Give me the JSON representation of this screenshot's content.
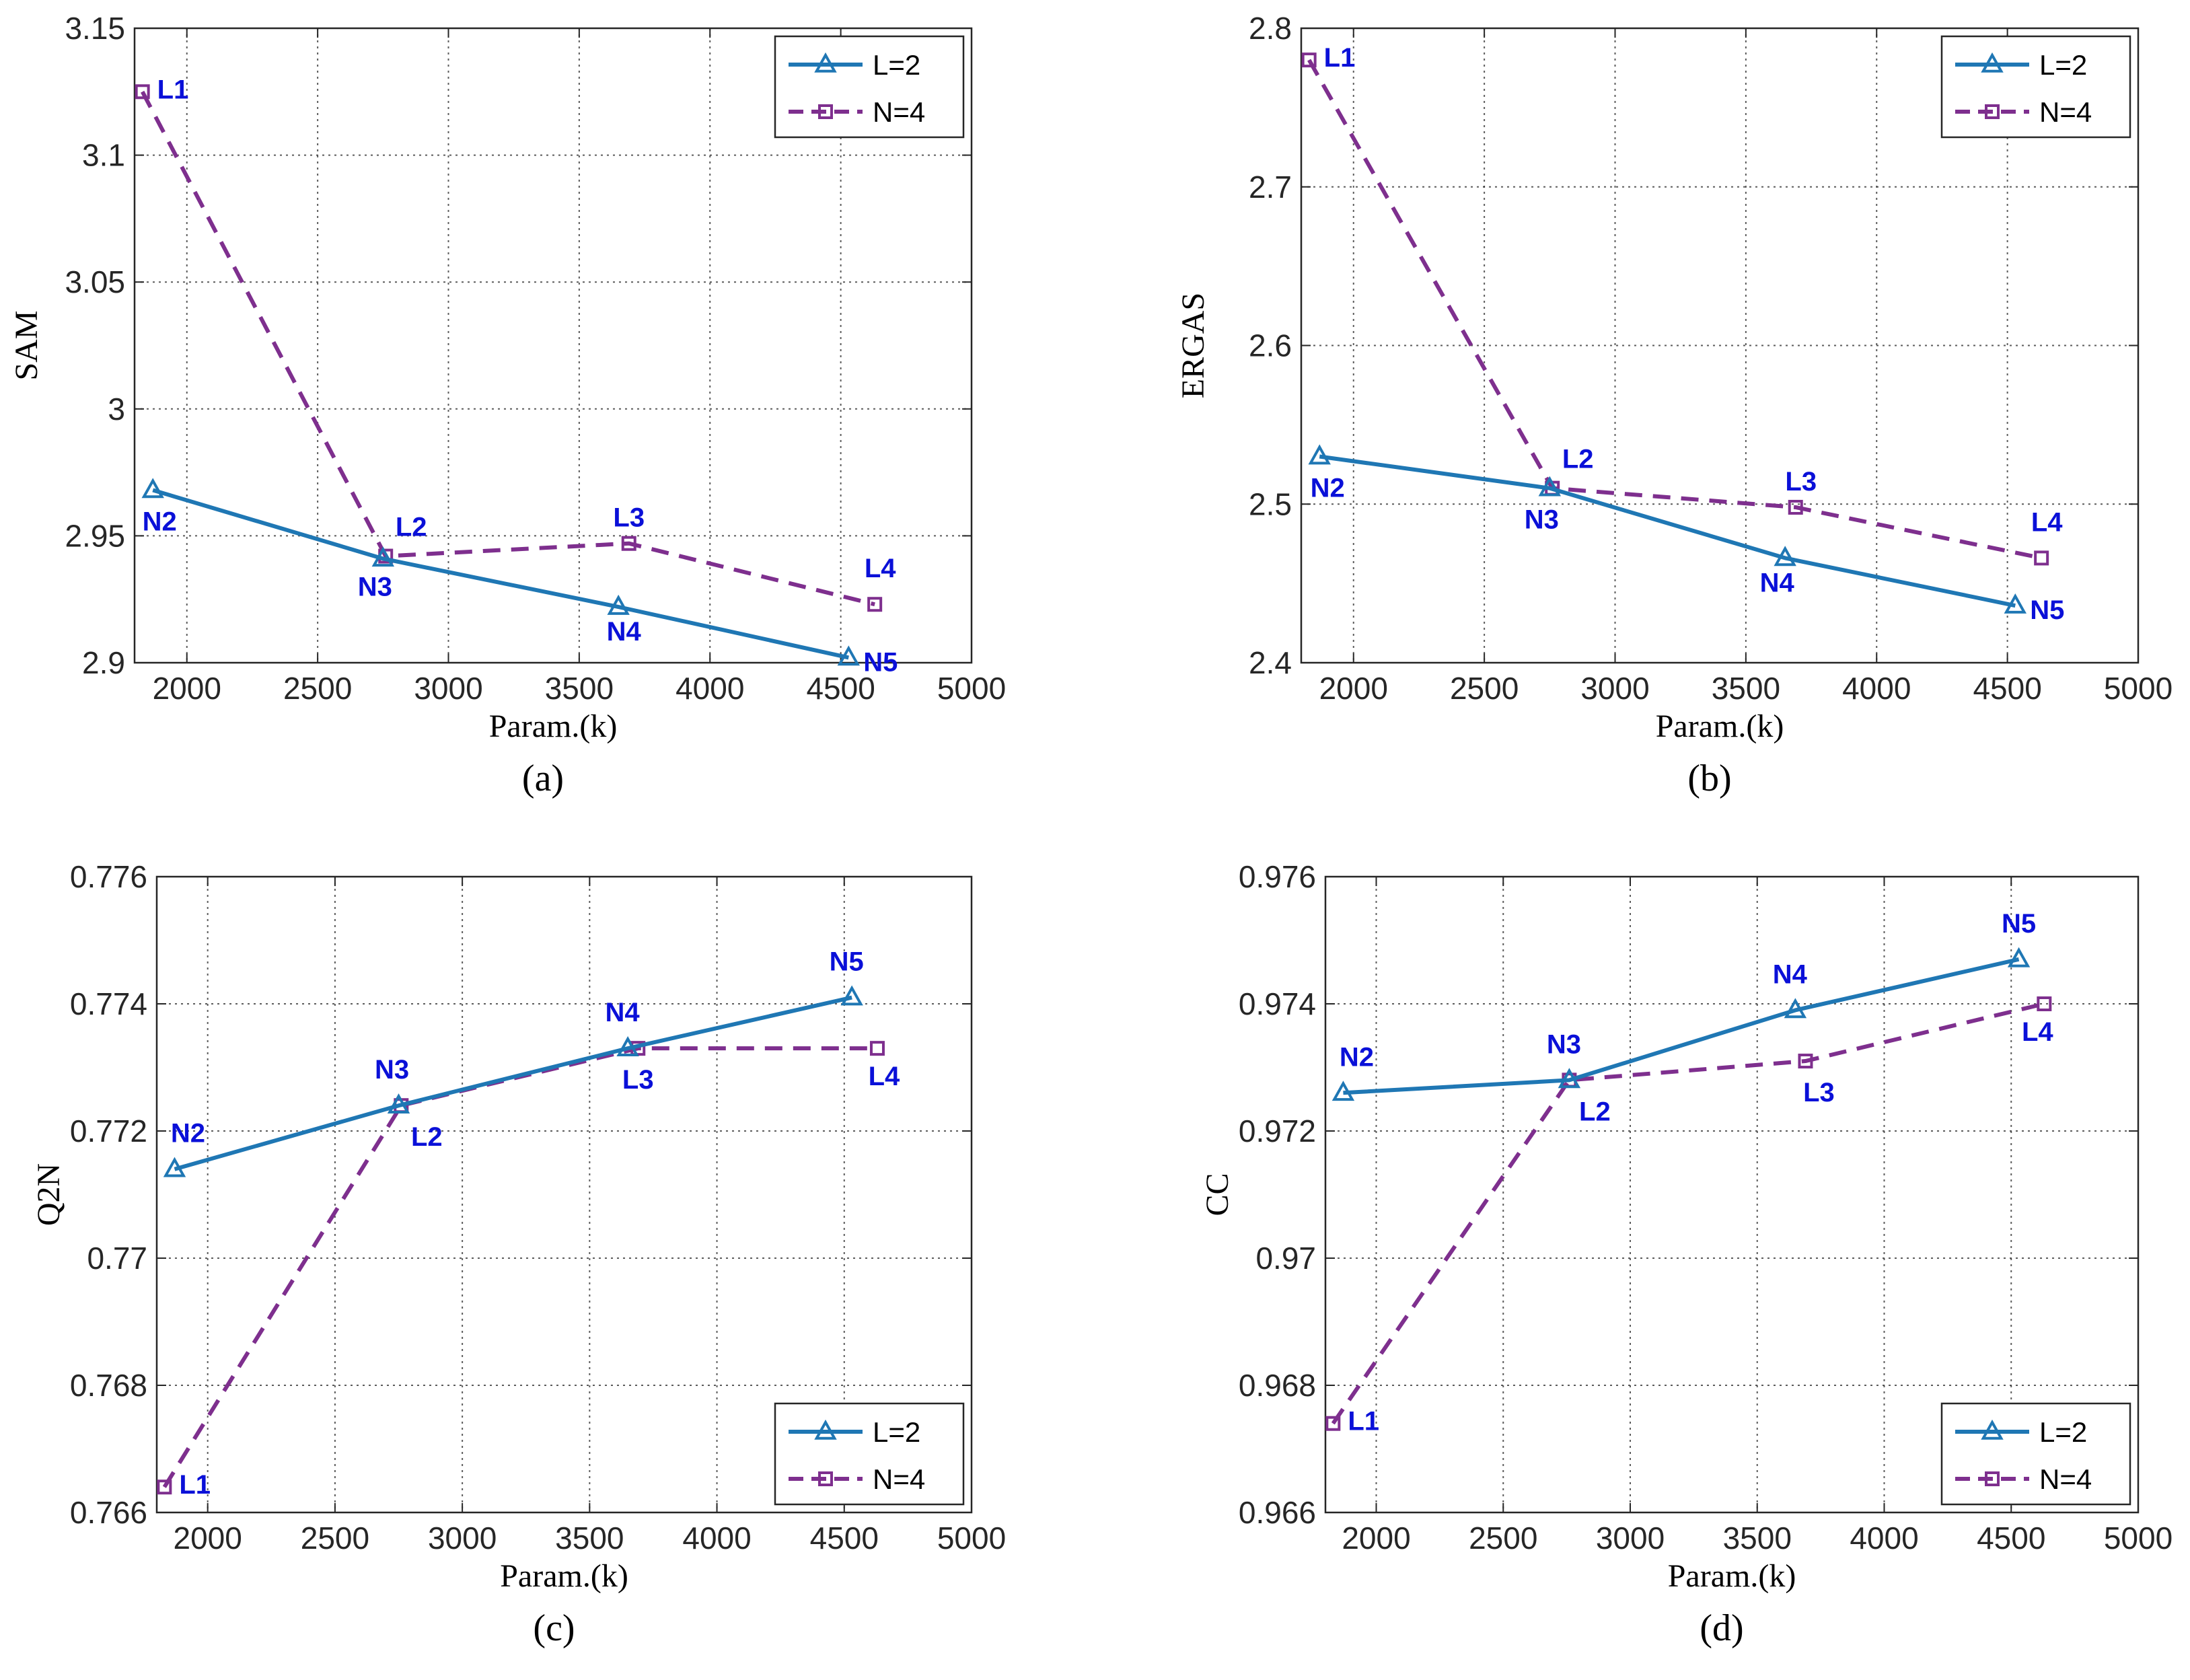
{
  "chart_data": [
    {
      "type": "line",
      "panel_caption": "(a)",
      "xlabel": "Param.(k)",
      "ylabel": "SAM",
      "xlim": [
        1800,
        5000
      ],
      "ylim": [
        2.9,
        3.15
      ],
      "xticks": [
        2000,
        2500,
        3000,
        3500,
        4000,
        4500,
        5000
      ],
      "yticks": [
        2.9,
        2.95,
        3,
        3.05,
        3.1,
        3.15
      ],
      "ytick_labels": [
        "2.9",
        "2.95",
        "3",
        "3.05",
        "3.1",
        "3.15"
      ],
      "grid": true,
      "legend_position": "top-right",
      "series": [
        {
          "name": "L=2",
          "style": "solid",
          "marker": "triangle",
          "color": "#1f77b4",
          "x": [
            1870,
            2750,
            3650,
            4530
          ],
          "y": [
            2.968,
            2.941,
            2.922,
            2.902
          ],
          "point_labels": [
            "N2",
            "N3",
            "N4",
            "N5"
          ]
        },
        {
          "name": "N=4",
          "style": "dashed",
          "marker": "square",
          "color": "#7e2f8e",
          "x": [
            1830,
            2760,
            3690,
            4630
          ],
          "y": [
            3.125,
            2.942,
            2.947,
            2.923
          ],
          "point_labels": [
            "L1",
            "L2",
            "L3",
            "L4"
          ]
        }
      ]
    },
    {
      "type": "line",
      "panel_caption": "(b)",
      "xlabel": "Param.(k)",
      "ylabel": "ERGAS",
      "xlim": [
        1800,
        5000
      ],
      "ylim": [
        2.4,
        2.8
      ],
      "xticks": [
        2000,
        2500,
        3000,
        3500,
        4000,
        4500,
        5000
      ],
      "yticks": [
        2.4,
        2.5,
        2.6,
        2.7,
        2.8
      ],
      "ytick_labels": [
        "2.4",
        "2.5",
        "2.6",
        "2.7",
        "2.8"
      ],
      "grid": true,
      "legend_position": "top-right",
      "series": [
        {
          "name": "L=2",
          "style": "solid",
          "marker": "triangle",
          "color": "#1f77b4",
          "x": [
            1870,
            2750,
            3650,
            4530
          ],
          "y": [
            2.53,
            2.51,
            2.466,
            2.436
          ],
          "point_labels": [
            "N2",
            "N3",
            "N4",
            "N5"
          ]
        },
        {
          "name": "N=4",
          "style": "dashed",
          "marker": "square",
          "color": "#7e2f8e",
          "x": [
            1830,
            2760,
            3690,
            4630
          ],
          "y": [
            2.78,
            2.51,
            2.498,
            2.466
          ],
          "point_labels": [
            "L1",
            "L2",
            "L3",
            "L4"
          ]
        }
      ]
    },
    {
      "type": "line",
      "panel_caption": "(c)",
      "xlabel": "Param.(k)",
      "ylabel": "Q2N",
      "xlim": [
        1800,
        5000
      ],
      "ylim": [
        0.766,
        0.776
      ],
      "xticks": [
        2000,
        2500,
        3000,
        3500,
        4000,
        4500,
        5000
      ],
      "yticks": [
        0.766,
        0.768,
        0.77,
        0.772,
        0.774,
        0.776
      ],
      "ytick_labels": [
        "0.766",
        "0.768",
        "0.77",
        "0.772",
        "0.774",
        "0.776"
      ],
      "grid": true,
      "legend_position": "bottom-right",
      "series": [
        {
          "name": "L=2",
          "style": "solid",
          "marker": "triangle",
          "color": "#1f77b4",
          "x": [
            1870,
            2750,
            3650,
            4530
          ],
          "y": [
            0.7714,
            0.7724,
            0.7733,
            0.7741
          ],
          "point_labels": [
            "N2",
            "N3",
            "N4",
            "N5"
          ]
        },
        {
          "name": "N=4",
          "style": "dashed",
          "marker": "square",
          "color": "#7e2f8e",
          "x": [
            1830,
            2760,
            3690,
            4630
          ],
          "y": [
            0.7664,
            0.7724,
            0.7733,
            0.7733
          ],
          "point_labels": [
            "L1",
            "L2",
            "L3",
            "L4"
          ]
        }
      ]
    },
    {
      "type": "line",
      "panel_caption": "(d)",
      "xlabel": "Param.(k)",
      "ylabel": "CC",
      "xlim": [
        1800,
        5000
      ],
      "ylim": [
        0.966,
        0.976
      ],
      "xticks": [
        2000,
        2500,
        3000,
        3500,
        4000,
        4500,
        5000
      ],
      "yticks": [
        0.966,
        0.968,
        0.97,
        0.972,
        0.974,
        0.976
      ],
      "ytick_labels": [
        "0.966",
        "0.968",
        "0.97",
        "0.972",
        "0.974",
        "0.976"
      ],
      "grid": true,
      "legend_position": "bottom-right",
      "series": [
        {
          "name": "L=2",
          "style": "solid",
          "marker": "triangle",
          "color": "#1f77b4",
          "x": [
            1870,
            2760,
            3650,
            4530
          ],
          "y": [
            0.9726,
            0.9728,
            0.9739,
            0.9747
          ],
          "point_labels": [
            "N2",
            "N3",
            "N4",
            "N5"
          ]
        },
        {
          "name": "N=4",
          "style": "dashed",
          "marker": "square",
          "color": "#7e2f8e",
          "x": [
            1830,
            2760,
            3690,
            4630
          ],
          "y": [
            0.9674,
            0.9728,
            0.9731,
            0.974
          ],
          "point_labels": [
            "L1",
            "L2",
            "L3",
            "L4"
          ]
        }
      ]
    }
  ]
}
